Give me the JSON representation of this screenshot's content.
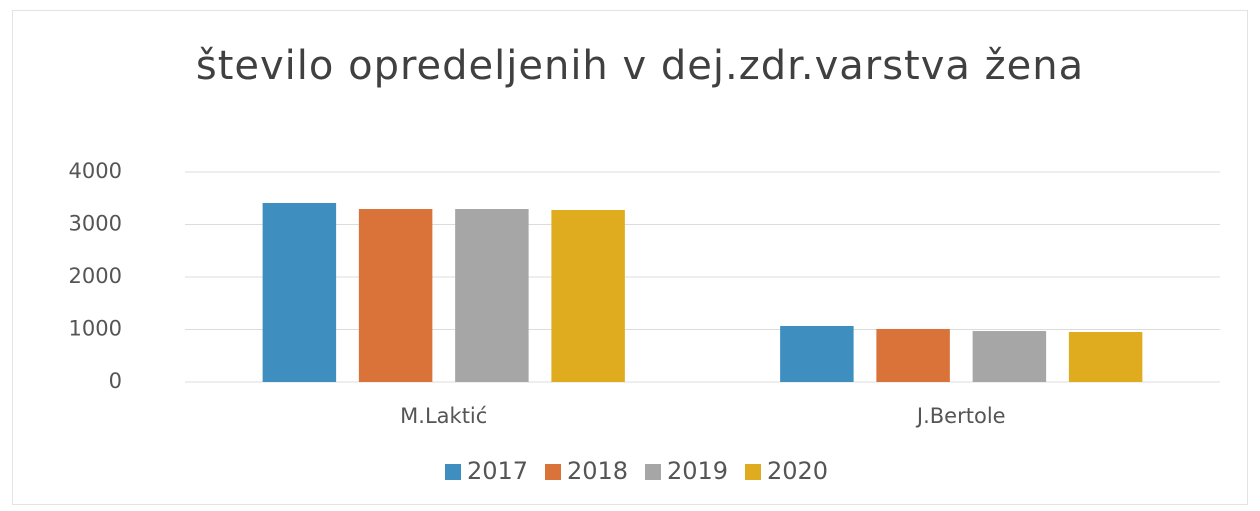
{
  "chart_data": {
    "type": "bar",
    "title": "število opredeljenih v dej.zdr.varstva žena",
    "categories": [
      "M.Laktić",
      "J.Bertole"
    ],
    "series": [
      {
        "name": "2017",
        "color": "#3e8fc0",
        "values": [
          3410,
          1067
        ]
      },
      {
        "name": "2018",
        "color": "#d9733a",
        "values": [
          3295,
          1010
        ]
      },
      {
        "name": "2019",
        "color": "#a6a6a6",
        "values": [
          3295,
          971
        ]
      },
      {
        "name": "2020",
        "color": "#e0ac1f",
        "values": [
          3276,
          952
        ]
      }
    ],
    "ylim": [
      0,
      4000
    ],
    "yticks": [
      0,
      1000,
      2000,
      3000,
      4000
    ],
    "grid": true,
    "legend": "bottom"
  }
}
